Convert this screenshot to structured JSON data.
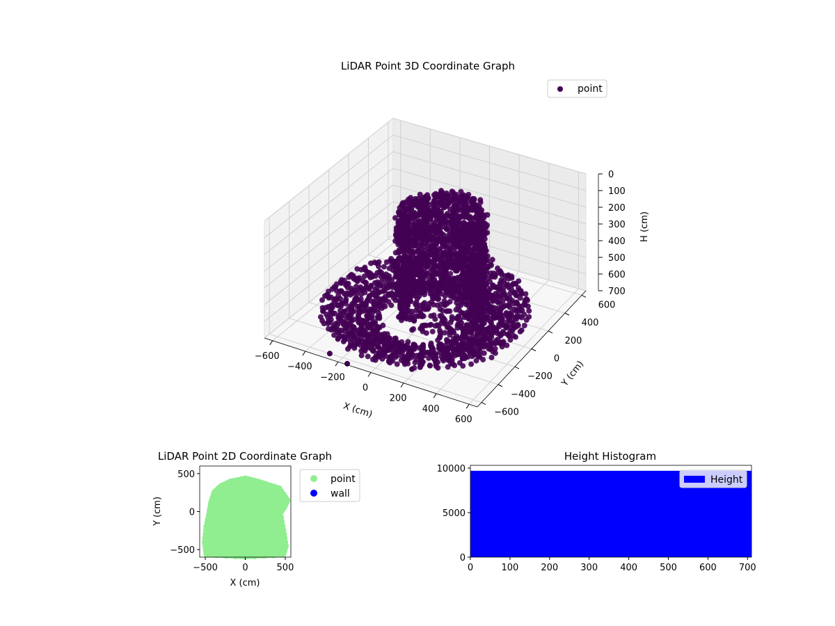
{
  "chart_data": [
    {
      "type": "scatter",
      "projection": "3d",
      "title": "LiDAR Point 3D Coordinate Graph",
      "xlabel": "X (cm)",
      "ylabel": "Y (cm)",
      "zlabel": "H (cm)",
      "xlim": [
        -650,
        650
      ],
      "ylim": [
        -650,
        650
      ],
      "zlim": [
        0,
        700
      ],
      "z_inverted": true,
      "xticks": [
        -600,
        -400,
        -200,
        0,
        200,
        400,
        600
      ],
      "yticks": [
        -600,
        -400,
        -200,
        0,
        200,
        400,
        600
      ],
      "zticks": [
        0,
        100,
        200,
        300,
        400,
        500,
        600,
        700
      ],
      "grid": true,
      "legend": "top-right",
      "series": [
        {
          "name": "point",
          "color": "#440154",
          "shape": "dome over ground ring",
          "ground_radius": 550,
          "dome_radius": 260,
          "height_range": [
            100,
            700
          ]
        }
      ]
    },
    {
      "type": "scatter",
      "title": "LiDAR Point 2D Coordinate Graph",
      "xlabel": "X (cm)",
      "ylabel": "Y (cm)",
      "xlim": [
        -570,
        570
      ],
      "ylim": [
        -600,
        600
      ],
      "xticks": [
        -500,
        0,
        500
      ],
      "yticks": [
        -500,
        0,
        500
      ],
      "legend": "outside-right",
      "series": [
        {
          "name": "point",
          "color": "#90EE90",
          "outline": [
            [
              -480,
              -560
            ],
            [
              -500,
              -400
            ],
            [
              -480,
              -200
            ],
            [
              -440,
              0
            ],
            [
              -420,
              120
            ],
            [
              -380,
              250
            ],
            [
              -300,
              330
            ],
            [
              -180,
              390
            ],
            [
              0,
              430
            ],
            [
              150,
              390
            ],
            [
              270,
              350
            ],
            [
              420,
              300
            ],
            [
              520,
              150
            ],
            [
              480,
              60
            ],
            [
              430,
              -20
            ],
            [
              470,
              -250
            ],
            [
              500,
              -450
            ],
            [
              470,
              -560
            ],
            [
              0,
              -590
            ]
          ]
        },
        {
          "name": "wall",
          "color": "#0000FF"
        }
      ]
    },
    {
      "type": "bar",
      "title": "Height Histogram",
      "xlim": [
        0,
        710
      ],
      "ylim": [
        0,
        10000
      ],
      "xticks": [
        0,
        100,
        200,
        300,
        400,
        500,
        600,
        700
      ],
      "yticks": [
        0,
        5000,
        10000
      ],
      "legend": "top-right",
      "series": [
        {
          "name": "Height",
          "color": "#0000FF",
          "bins": [
            [
              0,
              710,
              9700
            ]
          ]
        }
      ]
    }
  ]
}
